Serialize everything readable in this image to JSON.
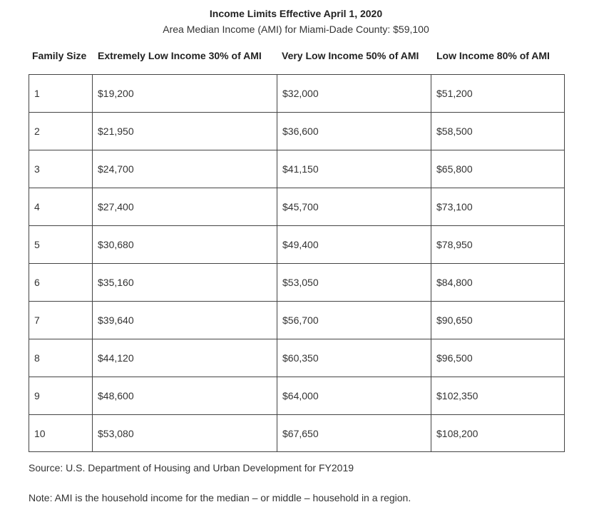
{
  "title": "Income Limits Effective April 1, 2020",
  "subtitle": "Area Median Income (AMI) for Miami-Dade County: $59,100",
  "columns": [
    "Family Size",
    "Extremely Low Income 30% of AMI",
    "Very Low Income 50% of AMI",
    "Low Income 80% of AMI"
  ],
  "rows": [
    [
      "1",
      "$19,200",
      "$32,000",
      "$51,200"
    ],
    [
      "2",
      "$21,950",
      "$36,600",
      "$58,500"
    ],
    [
      "3",
      "$24,700",
      "$41,150",
      "$65,800"
    ],
    [
      "4",
      "$27,400",
      "$45,700",
      "$73,100"
    ],
    [
      "5",
      "$30,680",
      "$49,400",
      "$78,950"
    ],
    [
      "6",
      "$35,160",
      "$53,050",
      "$84,800"
    ],
    [
      "7",
      "$39,640",
      "$56,700",
      "$90,650"
    ],
    [
      "8",
      "$44,120",
      "$60,350",
      "$96,500"
    ],
    [
      "9",
      "$48,600",
      "$64,000",
      "$102,350"
    ],
    [
      "10",
      "$53,080",
      "$67,650",
      "$108,200"
    ]
  ],
  "source": "Source: U.S. Department of Housing and Urban Development for FY2019",
  "note": "Note: AMI is the household income for the median – or middle – household in a region."
}
